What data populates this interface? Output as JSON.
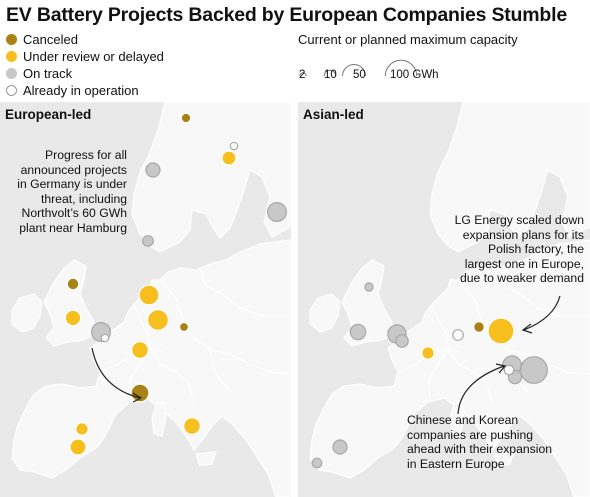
{
  "title": "EV Battery Projects Backed by European Companies Stumble",
  "colors": {
    "canceled": "#a88212",
    "under_review": "#f6bf1e",
    "on_track": "#c8c8c8",
    "in_operation": "#ffffff",
    "sea": "#e9e9e9",
    "land": "#f8f8f8"
  },
  "legend": {
    "status": [
      {
        "key": "canceled",
        "label": "Canceled"
      },
      {
        "key": "under_review",
        "label": "Under review or delayed"
      },
      {
        "key": "on_track",
        "label": "On track"
      },
      {
        "key": "in_operation",
        "label": "Already in operation"
      }
    ],
    "size": {
      "caption": "Current or planned maximum capacity",
      "values": [
        2,
        10,
        50,
        100
      ],
      "labels": [
        "2",
        "10",
        "50",
        "100 GWh"
      ]
    }
  },
  "panels": {
    "european": {
      "title": "European-led",
      "annotation": [
        "Progress for all",
        "announced projects",
        "in Germany is under",
        "threat, including",
        "Northvolt’s 60 GWh",
        "plant near Hamburg"
      ],
      "projects": [
        {
          "status": "canceled",
          "gwh": 6
        },
        {
          "status": "in_operation",
          "gwh": 3
        },
        {
          "status": "under_review",
          "gwh": 16
        },
        {
          "status": "on_track",
          "gwh": 16
        },
        {
          "status": "on_track",
          "gwh": 32
        },
        {
          "status": "on_track",
          "gwh": 8
        },
        {
          "status": "canceled",
          "gwh": 10
        },
        {
          "status": "under_review",
          "gwh": 36
        },
        {
          "status": "under_review",
          "gwh": 20
        },
        {
          "status": "canceled",
          "gwh": 5
        },
        {
          "status": "under_review",
          "gwh": 40
        },
        {
          "status": "on_track",
          "gwh": 32
        },
        {
          "status": "in_operation",
          "gwh": 3
        },
        {
          "status": "under_review",
          "gwh": 24
        },
        {
          "status": "canceled",
          "gwh": 28
        },
        {
          "status": "under_review",
          "gwh": 12
        },
        {
          "status": "under_review",
          "gwh": 22
        },
        {
          "status": "under_review",
          "gwh": 24
        }
      ]
    },
    "asian": {
      "title": "Asian-led",
      "annotation_top": [
        "LG Energy scaled down",
        "expansion plans for its",
        "Polish factory, the",
        "largest one in Europe,",
        "due to weaker demand"
      ],
      "annotation_bottom": [
        "Chinese and Korean",
        "companies are pushing",
        "ahead with their expansion",
        "in Eastern Europe"
      ],
      "projects": [
        {
          "status": "on_track",
          "gwh": 4
        },
        {
          "status": "on_track",
          "gwh": 20
        },
        {
          "status": "on_track",
          "gwh": 30
        },
        {
          "status": "on_track",
          "gwh": 12
        },
        {
          "status": "under_review",
          "gwh": 12
        },
        {
          "status": "in_operation",
          "gwh": 8
        },
        {
          "status": "canceled",
          "gwh": 8
        },
        {
          "status": "under_review",
          "gwh": 65
        },
        {
          "status": "on_track",
          "gwh": 30
        },
        {
          "status": "on_track",
          "gwh": 14
        },
        {
          "status": "in_operation",
          "gwh": 6
        },
        {
          "status": "on_track",
          "gwh": 70
        },
        {
          "status": "on_track",
          "gwh": 16
        },
        {
          "status": "on_track",
          "gwh": 6
        }
      ]
    }
  }
}
